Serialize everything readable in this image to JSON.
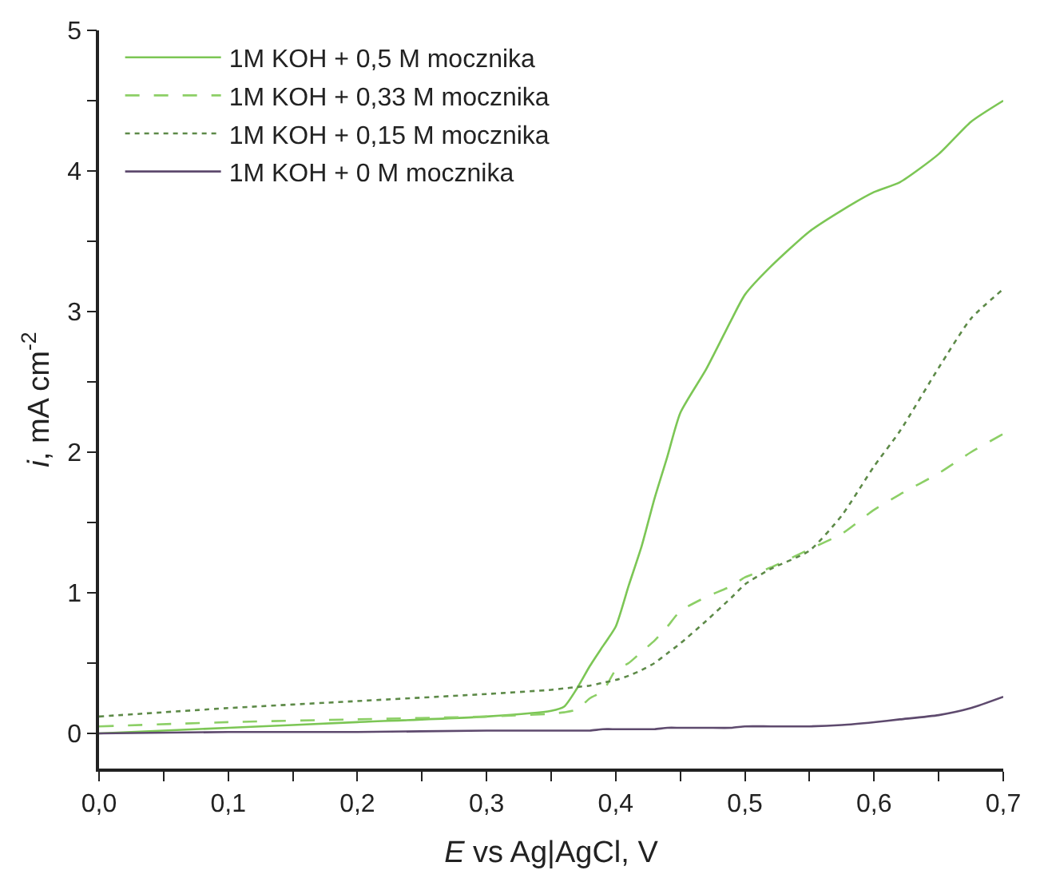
{
  "chart_data": {
    "type": "line",
    "xlabel": "E vs Ag|AgCl, V",
    "ylabel": "i, mA cm$^{-2}$",
    "xlim": [
      0,
      0.7
    ],
    "ylim": [
      -0.25,
      5
    ],
    "xticks": [
      {
        "value": 0,
        "label": "0,0"
      },
      {
        "value": 0.05,
        "label": null
      },
      {
        "value": 0.1,
        "label": "0,1"
      },
      {
        "value": 0.15,
        "label": null
      },
      {
        "value": 0.2,
        "label": "0,2"
      },
      {
        "value": 0.25,
        "label": null
      },
      {
        "value": 0.3,
        "label": "0,3"
      },
      {
        "value": 0.35,
        "label": null
      },
      {
        "value": 0.4,
        "label": "0,4"
      },
      {
        "value": 0.45,
        "label": null
      },
      {
        "value": 0.5,
        "label": "0,5"
      },
      {
        "value": 0.55,
        "label": null
      },
      {
        "value": 0.6,
        "label": "0,6"
      },
      {
        "value": 0.65,
        "label": null
      },
      {
        "value": 0.7,
        "label": "0,7"
      }
    ],
    "yticks": [
      0,
      {
        "value": 0.5,
        "label": null
      },
      1,
      {
        "value": 1.5,
        "label": null
      },
      2,
      {
        "value": 2.5,
        "label": null
      },
      3,
      {
        "value": 3.5,
        "label": null
      },
      4,
      {
        "value": 4.5,
        "label": null
      },
      5
    ],
    "legend": "top left",
    "marker": "none",
    "x": [
      0,
      0.1,
      0.2,
      0.3,
      0.35,
      0.36,
      0.37,
      0.38,
      0.39,
      0.4,
      0.41,
      0.42,
      0.43,
      0.44,
      0.45,
      0.47,
      0.49,
      0.5,
      0.52,
      0.55,
      0.575,
      0.6,
      0.62,
      0.65,
      0.675,
      0.7
    ],
    "series": [
      {
        "name": "1M KOH + 0,5 M mocznika",
        "color": "#7cc655",
        "line_style": "solid",
        "values": [
          0.0,
          0.04,
          0.08,
          0.12,
          0.16,
          0.19,
          0.32,
          0.48,
          0.62,
          0.76,
          1.05,
          1.33,
          1.67,
          1.97,
          2.28,
          2.59,
          2.95,
          3.12,
          3.32,
          3.57,
          3.72,
          3.85,
          3.92,
          4.12,
          4.35,
          4.5
        ]
      },
      {
        "name": "1M KOH + 0,33 M mocznika",
        "color": "#8ccf66",
        "line_style": "dashed",
        "values": [
          0.05,
          0.08,
          0.1,
          0.12,
          0.14,
          0.15,
          0.17,
          0.25,
          0.3,
          0.45,
          0.5,
          0.58,
          0.66,
          0.76,
          0.87,
          0.97,
          1.05,
          1.11,
          1.18,
          1.31,
          1.42,
          1.59,
          1.7,
          1.85,
          2.0,
          2.13
        ]
      },
      {
        "name": "1M KOH + 0,15 M mocznika",
        "color": "#5d8a48",
        "line_style": "dotted",
        "values": [
          0.12,
          0.18,
          0.23,
          0.28,
          0.31,
          0.32,
          0.33,
          0.34,
          0.36,
          0.38,
          0.41,
          0.45,
          0.5,
          0.57,
          0.64,
          0.8,
          0.97,
          1.06,
          1.17,
          1.3,
          1.55,
          1.9,
          2.15,
          2.6,
          2.95,
          3.16
        ]
      },
      {
        "name": "1M KOH + 0 M mocznika",
        "color": "#5e4a6e",
        "line_style": "solid",
        "values": [
          0.0,
          0.01,
          0.01,
          0.02,
          0.02,
          0.02,
          0.02,
          0.02,
          0.03,
          0.03,
          0.03,
          0.03,
          0.03,
          0.04,
          0.04,
          0.04,
          0.04,
          0.05,
          0.05,
          0.05,
          0.06,
          0.08,
          0.1,
          0.13,
          0.18,
          0.26
        ]
      }
    ]
  }
}
